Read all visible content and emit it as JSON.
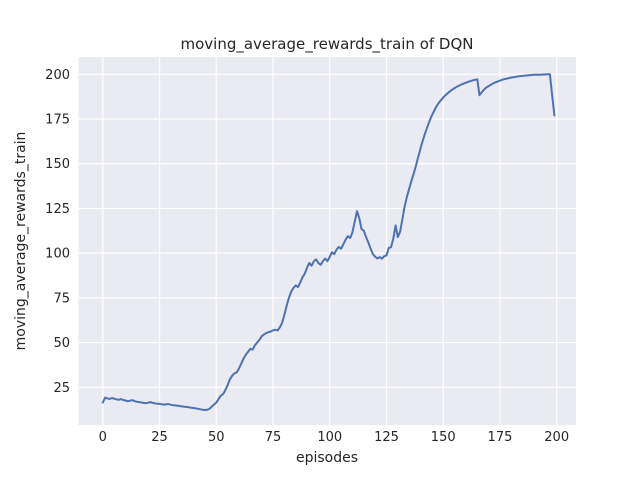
{
  "figure": {
    "title": "moving_average_rewards_train of DQN",
    "xlabel": "episodes",
    "ylabel": "moving_average_rewards_train"
  },
  "chart_data": {
    "type": "line",
    "title": "moving_average_rewards_train of DQN",
    "xlabel": "episodes",
    "ylabel": "moving_average_rewards_train",
    "grid": true,
    "legend_position": "none",
    "xlim": [
      -10,
      209
    ],
    "ylim": [
      3,
      209.5
    ],
    "xticks": [
      0,
      25,
      50,
      75,
      100,
      125,
      150,
      175,
      200
    ],
    "yticks": [
      25,
      50,
      75,
      100,
      125,
      150,
      175,
      200
    ],
    "colors": {
      "line": "#4c72b0",
      "axes_background": "#eaeaf2",
      "grid": "#ffffff",
      "figure_background": "#ffffff",
      "text": "#262626"
    },
    "x": [
      0,
      1,
      2,
      3,
      4,
      5,
      6,
      7,
      8,
      9,
      10,
      11,
      12,
      13,
      14,
      15,
      16,
      17,
      18,
      19,
      20,
      21,
      22,
      23,
      24,
      25,
      26,
      27,
      28,
      29,
      30,
      31,
      32,
      33,
      34,
      35,
      36,
      37,
      38,
      39,
      40,
      41,
      42,
      43,
      44,
      45,
      46,
      47,
      48,
      49,
      50,
      51,
      52,
      53,
      54,
      55,
      56,
      57,
      58,
      59,
      60,
      61,
      62,
      63,
      64,
      65,
      66,
      67,
      68,
      69,
      70,
      71,
      72,
      73,
      74,
      75,
      76,
      77,
      78,
      79,
      80,
      81,
      82,
      83,
      84,
      85,
      86,
      87,
      88,
      89,
      90,
      91,
      92,
      93,
      94,
      95,
      96,
      97,
      98,
      99,
      100,
      101,
      102,
      103,
      104,
      105,
      106,
      107,
      108,
      109,
      110,
      111,
      112,
      113,
      114,
      115,
      116,
      117,
      118,
      119,
      120,
      121,
      122,
      123,
      124,
      125,
      126,
      127,
      128,
      129,
      130,
      131,
      132,
      133,
      134,
      135,
      136,
      137,
      138,
      139,
      140,
      141,
      142,
      143,
      144,
      145,
      146,
      147,
      148,
      149,
      150,
      151,
      152,
      153,
      154,
      155,
      156,
      157,
      158,
      159,
      160,
      161,
      162,
      163,
      164,
      165,
      166,
      167,
      168,
      169,
      170,
      171,
      172,
      173,
      174,
      175,
      176,
      177,
      178,
      179,
      180,
      181,
      182,
      183,
      184,
      185,
      186,
      187,
      188,
      189,
      190,
      191,
      192,
      193,
      194,
      195,
      196,
      197,
      198,
      199
    ],
    "y": [
      16.5,
      19.2,
      18.8,
      18.5,
      19,
      18.6,
      18.3,
      18,
      18.4,
      17.9,
      17.6,
      17.2,
      17.5,
      17.8,
      17.3,
      16.9,
      16.7,
      16.5,
      16.3,
      16.1,
      16.4,
      16.7,
      16.3,
      16,
      15.8,
      15.7,
      15.5,
      15.3,
      15.5,
      15.6,
      15.2,
      15,
      14.9,
      14.7,
      14.5,
      14.3,
      14.1,
      14,
      13.8,
      13.6,
      13.4,
      13.2,
      13,
      12.7,
      12.4,
      12.3,
      12.5,
      13,
      14.2,
      15.3,
      16.5,
      18.4,
      20.3,
      21.2,
      23.5,
      26.2,
      29.5,
      31.5,
      32.8,
      33.4,
      35.5,
      38.2,
      41,
      43.2,
      44.8,
      46.5,
      46,
      48.5,
      50,
      51.5,
      53.5,
      54.5,
      55.3,
      55.8,
      56.2,
      56.8,
      57.2,
      56.8,
      58.5,
      61,
      65.5,
      70.5,
      75,
      78.5,
      80.5,
      82,
      81,
      83.5,
      86.5,
      88.5,
      92,
      94.5,
      93,
      95.5,
      96.5,
      94.5,
      93.5,
      95.5,
      97,
      95.5,
      98,
      100.5,
      99.5,
      102,
      103.5,
      102.5,
      105,
      107.5,
      109.5,
      108.5,
      111.5,
      117.5,
      123.5,
      119.5,
      113.5,
      112.5,
      109,
      106,
      102.5,
      99.5,
      98,
      97,
      97.8,
      96.9,
      98.3,
      98.7,
      103,
      103.3,
      108,
      115.5,
      109,
      112,
      119,
      126,
      131.5,
      136,
      140.5,
      144.5,
      149,
      154,
      158.5,
      163,
      167,
      170.5,
      174,
      177,
      179.5,
      182,
      184,
      185.5,
      187,
      188.3,
      189.5,
      190.5,
      191.5,
      192.3,
      193,
      193.7,
      194.3,
      194.8,
      195.3,
      195.8,
      196.2,
      196.6,
      196.9,
      197.2,
      188.3,
      190,
      191.5,
      192.6,
      193.4,
      194.2,
      194.9,
      195.5,
      196,
      196.5,
      196.9,
      197.3,
      197.6,
      197.9,
      198.2,
      198.4,
      198.6,
      198.8,
      199,
      199.1,
      199.3,
      199.4,
      199.5,
      199.6,
      199.7,
      199.7,
      199.8,
      199.8,
      199.9,
      199.9,
      200,
      200,
      188,
      177
    ]
  }
}
